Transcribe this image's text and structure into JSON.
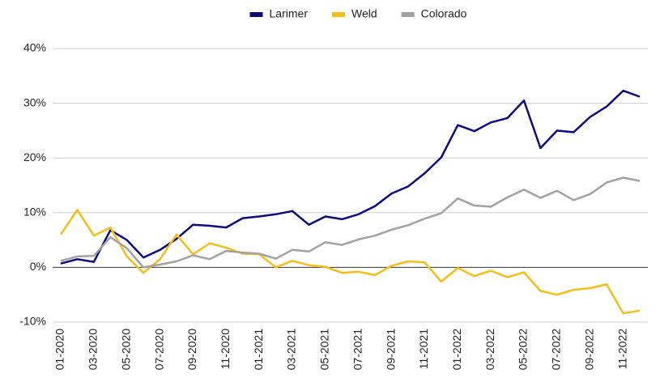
{
  "chart_data": {
    "type": "line",
    "categories": [
      "01-2020",
      null,
      "03-2020",
      null,
      "05-2020",
      null,
      "07-2020",
      null,
      "09-2020",
      null,
      "11-2020",
      null,
      "01-2021",
      null,
      "03-2021",
      null,
      "05-2021",
      null,
      "07-2021",
      null,
      "09-2021",
      null,
      "11-2021",
      null,
      "01-2022",
      null,
      "03-2022",
      null,
      "05-2022",
      null,
      "07-2022",
      null,
      "09-2022",
      null,
      "11-2022",
      null
    ],
    "series": [
      {
        "name": "Larimer",
        "color": "#0b0b7e",
        "values": [
          0.7,
          1.5,
          1.0,
          6.8,
          5.0,
          1.8,
          3.2,
          5.2,
          7.8,
          7.6,
          7.3,
          9.0,
          9.3,
          9.7,
          10.3,
          7.8,
          9.3,
          8.8,
          9.7,
          11.2,
          13.5,
          14.8,
          17.2,
          20.1,
          26.0,
          24.9,
          26.5,
          27.3,
          30.5,
          21.8,
          25.0,
          24.7,
          27.5,
          29.4,
          32.3,
          31.2
        ]
      },
      {
        "name": "Weld",
        "color": "#f4bd1a",
        "values": [
          6.0,
          10.5,
          5.8,
          7.3,
          2.0,
          -1.0,
          1.5,
          6.0,
          2.4,
          4.4,
          3.6,
          2.5,
          2.4,
          0.0,
          1.2,
          0.4,
          0.1,
          -1.0,
          -0.8,
          -1.4,
          0.3,
          1.1,
          0.9,
          -2.6,
          -0.1,
          -1.6,
          -0.6,
          -1.8,
          -0.9,
          -4.3,
          -5.0,
          -4.1,
          -3.8,
          -3.1,
          -8.4,
          -7.9
        ]
      },
      {
        "name": "Colorado",
        "color": "#a2a2a2",
        "values": [
          1.2,
          2.0,
          2.1,
          5.5,
          3.5,
          0.0,
          0.5,
          1.1,
          2.2,
          1.5,
          3.0,
          2.7,
          2.5,
          1.6,
          3.2,
          2.9,
          4.6,
          4.1,
          5.1,
          5.8,
          6.9,
          7.7,
          8.9,
          9.9,
          12.6,
          11.3,
          11.1,
          12.8,
          14.2,
          12.7,
          14.0,
          12.3,
          13.4,
          15.5,
          16.4,
          15.8
        ]
      }
    ],
    "ylim": [
      -10,
      40
    ],
    "yticks": [
      {
        "value": -10,
        "label": "-10%"
      },
      {
        "value": 0,
        "label": "0%"
      },
      {
        "value": 10,
        "label": "10%"
      },
      {
        "value": 20,
        "label": "20%"
      },
      {
        "value": 30,
        "label": "30%"
      },
      {
        "value": 40,
        "label": "40%"
      }
    ],
    "grid": true,
    "legend": "top"
  }
}
